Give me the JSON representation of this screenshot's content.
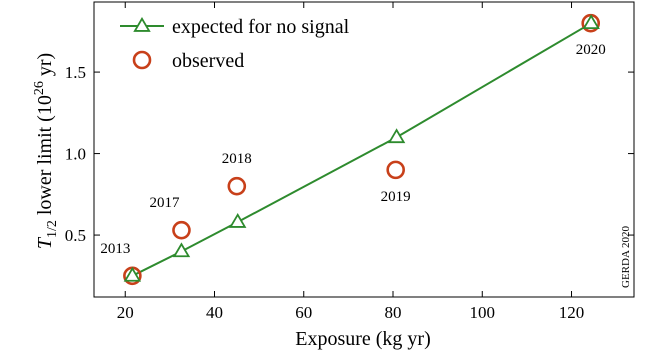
{
  "chart_data": {
    "type": "scatter",
    "xlabel": "Exposure (kg yr)",
    "ylabel": {
      "prefix": "T",
      "subscript": "1/2",
      "middle": " lower limit (10",
      "superscript": "26",
      "suffix": " yr)"
    },
    "xlim": [
      13,
      134
    ],
    "ylim": [
      0.12,
      1.93
    ],
    "xticks": [
      20,
      40,
      60,
      80,
      100,
      120
    ],
    "yticks": [
      0.5,
      1.0,
      1.5
    ],
    "yticks_labels": [
      "0.5",
      "1.0",
      "1.5"
    ],
    "grid": false,
    "legend_position": "top-left",
    "series": [
      {
        "name": "expected for no signal",
        "marker": "triangle",
        "connected": true,
        "color": "#2e8b2e",
        "x": [
          21.6,
          32.6,
          45.2,
          80.8,
          124.4
        ],
        "y": [
          0.25,
          0.4,
          0.58,
          1.1,
          1.8
        ]
      },
      {
        "name": "observed",
        "marker": "circle",
        "connected": false,
        "color": "#c8401a",
        "x": [
          21.6,
          32.6,
          45.0,
          80.6,
          124.3
        ],
        "y": [
          0.25,
          0.53,
          0.8,
          0.9,
          1.8
        ],
        "labels": [
          "2013",
          "2017",
          "2018",
          "2019",
          "2020"
        ],
        "label_side": [
          "above-left",
          "above-left",
          "above",
          "below",
          "below"
        ]
      }
    ],
    "watermark": "GERDA 2020"
  }
}
